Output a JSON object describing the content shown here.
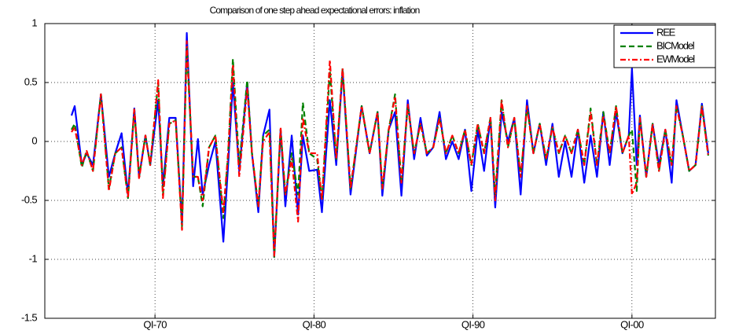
{
  "chart_data": {
    "type": "line",
    "title": "Comparison of one step ahead expectational errors: inflation",
    "x": [
      1964.75,
      1964.95,
      1965.4,
      1965.7,
      1966.1,
      1966.6,
      1967.1,
      1967.5,
      1967.9,
      1968.3,
      1968.7,
      1969.0,
      1969.4,
      1969.7,
      1970.2,
      1970.5,
      1970.9,
      1971.3,
      1971.7,
      1972.0,
      1972.4,
      1972.7,
      1973.0,
      1973.4,
      1973.8,
      1974.3,
      1974.6,
      1974.9,
      1975.3,
      1975.8,
      1976.1,
      1976.5,
      1976.8,
      1977.2,
      1977.5,
      1977.9,
      1978.2,
      1978.6,
      1979.0,
      1979.3,
      1979.7,
      1980.2,
      1980.5,
      1981.0,
      1981.4,
      1981.8,
      1982.3,
      1983.0,
      1983.5,
      1984.0,
      1984.3,
      1984.7,
      1985.1,
      1985.5,
      1985.9,
      1986.3,
      1986.7,
      1987.1,
      1987.5,
      1987.9,
      1988.3,
      1988.7,
      1989.1,
      1989.5,
      1989.9,
      1990.3,
      1990.7,
      1991.1,
      1991.4,
      1991.8,
      1992.2,
      1992.6,
      1993.0,
      1993.4,
      1993.8,
      1994.2,
      1994.6,
      1995.0,
      1995.4,
      1995.8,
      1996.2,
      1996.6,
      1997.0,
      1997.4,
      1997.8,
      1998.2,
      1998.6,
      1999.0,
      1999.4,
      1999.8,
      2000.0,
      2000.3,
      2000.5,
      2000.9,
      2001.3,
      2001.7,
      2002.1,
      2002.5,
      2002.8,
      2003.2,
      2003.6,
      2004.0,
      2004.4,
      2004.8
    ],
    "series": [
      {
        "name": "REE",
        "color": "#0000ff",
        "dash": "solid",
        "values": [
          0.22,
          0.3,
          -0.2,
          -0.1,
          -0.2,
          0.4,
          -0.3,
          -0.1,
          0.07,
          -0.45,
          0.28,
          -0.3,
          0.05,
          -0.2,
          0.35,
          -0.38,
          0.2,
          0.2,
          -0.7,
          0.92,
          -0.38,
          0.02,
          -0.45,
          -0.2,
          0.0,
          -0.85,
          -0.2,
          0.5,
          -0.25,
          0.5,
          -0.1,
          -0.6,
          0.05,
          0.27,
          -0.98,
          0.1,
          -0.55,
          0.05,
          -0.62,
          0.05,
          -0.25,
          -0.24,
          -0.6,
          0.35,
          -0.2,
          0.6,
          -0.45,
          0.3,
          -0.1,
          0.25,
          -0.46,
          0.1,
          0.25,
          -0.46,
          0.35,
          -0.15,
          0.2,
          -0.12,
          -0.05,
          0.25,
          -0.15,
          0.0,
          -0.15,
          0.1,
          -0.42,
          0.1,
          -0.25,
          0.2,
          -0.56,
          0.25,
          0.0,
          0.2,
          -0.45,
          0.35,
          -0.1,
          0.15,
          -0.2,
          0.15,
          -0.3,
          0.0,
          -0.3,
          0.1,
          -0.35,
          0.05,
          -0.3,
          0.25,
          -0.2,
          0.25,
          -0.1,
          0.05,
          0.62,
          -0.2,
          0.22,
          -0.3,
          0.15,
          -0.2,
          0.1,
          -0.35,
          0.35,
          0.05,
          -0.25,
          -0.2,
          0.32,
          -0.1
        ]
      },
      {
        "name": "BICModel",
        "color": "#008000",
        "dash": "dashed",
        "values": [
          0.1,
          0.15,
          -0.22,
          -0.08,
          -0.25,
          0.4,
          -0.4,
          -0.1,
          -0.05,
          -0.48,
          0.27,
          -0.3,
          0.05,
          -0.2,
          0.5,
          -0.45,
          0.15,
          0.18,
          -0.72,
          0.8,
          -0.3,
          -0.3,
          -0.55,
          -0.05,
          0.05,
          -0.65,
          -0.1,
          0.7,
          -0.2,
          0.52,
          -0.1,
          -0.55,
          0.05,
          0.1,
          -0.98,
          0.1,
          -0.45,
          -0.1,
          -0.45,
          0.33,
          -0.1,
          -0.15,
          -0.5,
          0.6,
          -0.15,
          0.62,
          -0.4,
          0.3,
          -0.1,
          0.25,
          -0.4,
          0.1,
          0.4,
          -0.35,
          0.3,
          -0.1,
          0.15,
          -0.1,
          -0.05,
          0.2,
          -0.1,
          0.05,
          -0.1,
          0.1,
          -0.2,
          0.15,
          -0.1,
          0.2,
          -0.45,
          0.35,
          -0.05,
          0.2,
          -0.3,
          0.3,
          -0.1,
          0.15,
          -0.15,
          0.12,
          -0.1,
          0.05,
          -0.1,
          0.1,
          -0.2,
          0.28,
          -0.2,
          0.25,
          -0.1,
          0.3,
          -0.1,
          0.05,
          0.1,
          -0.42,
          0.2,
          -0.3,
          0.15,
          -0.25,
          0.1,
          -0.2,
          0.3,
          0.05,
          -0.25,
          -0.2,
          0.3,
          -0.12
        ]
      },
      {
        "name": "EWModel",
        "color": "#ff0000",
        "dash": "dashdot",
        "values": [
          0.08,
          0.12,
          -0.2,
          -0.08,
          -0.25,
          0.4,
          -0.42,
          -0.1,
          -0.05,
          -0.48,
          0.28,
          -0.32,
          0.05,
          -0.2,
          0.52,
          -0.48,
          0.15,
          0.18,
          -0.75,
          0.85,
          -0.3,
          -0.3,
          -0.5,
          -0.05,
          0.05,
          -0.6,
          -0.1,
          0.65,
          -0.3,
          0.45,
          -0.1,
          -0.55,
          0.0,
          0.08,
          -0.97,
          0.12,
          -0.45,
          -0.15,
          -0.68,
          0.2,
          -0.1,
          -0.1,
          -0.5,
          0.69,
          -0.15,
          0.62,
          -0.4,
          0.3,
          -0.1,
          0.25,
          -0.4,
          0.1,
          0.38,
          -0.35,
          0.32,
          -0.1,
          0.15,
          -0.1,
          -0.05,
          0.2,
          -0.1,
          0.05,
          -0.1,
          0.1,
          -0.2,
          0.15,
          -0.1,
          0.2,
          -0.5,
          0.35,
          -0.05,
          0.2,
          -0.3,
          0.3,
          -0.1,
          0.15,
          -0.15,
          0.12,
          -0.1,
          0.05,
          -0.1,
          0.1,
          -0.2,
          0.25,
          -0.2,
          0.22,
          -0.1,
          0.3,
          -0.1,
          0.05,
          -0.45,
          -0.35,
          0.2,
          -0.3,
          0.15,
          -0.25,
          0.1,
          -0.2,
          0.3,
          0.05,
          -0.25,
          -0.2,
          0.3,
          -0.12
        ]
      }
    ],
    "xlim": [
      1963.07,
      2005.25
    ],
    "xticks": [
      {
        "value": 1970,
        "label": "QI-70"
      },
      {
        "value": 1980,
        "label": "QI-80"
      },
      {
        "value": 1990,
        "label": "QI-90"
      },
      {
        "value": 2000,
        "label": "QI-00"
      }
    ],
    "ylim": [
      -1.5,
      1
    ],
    "yticks": [
      -1.5,
      -1,
      -0.5,
      0,
      0.5,
      1
    ],
    "grid": true,
    "legend": "upper-right"
  }
}
